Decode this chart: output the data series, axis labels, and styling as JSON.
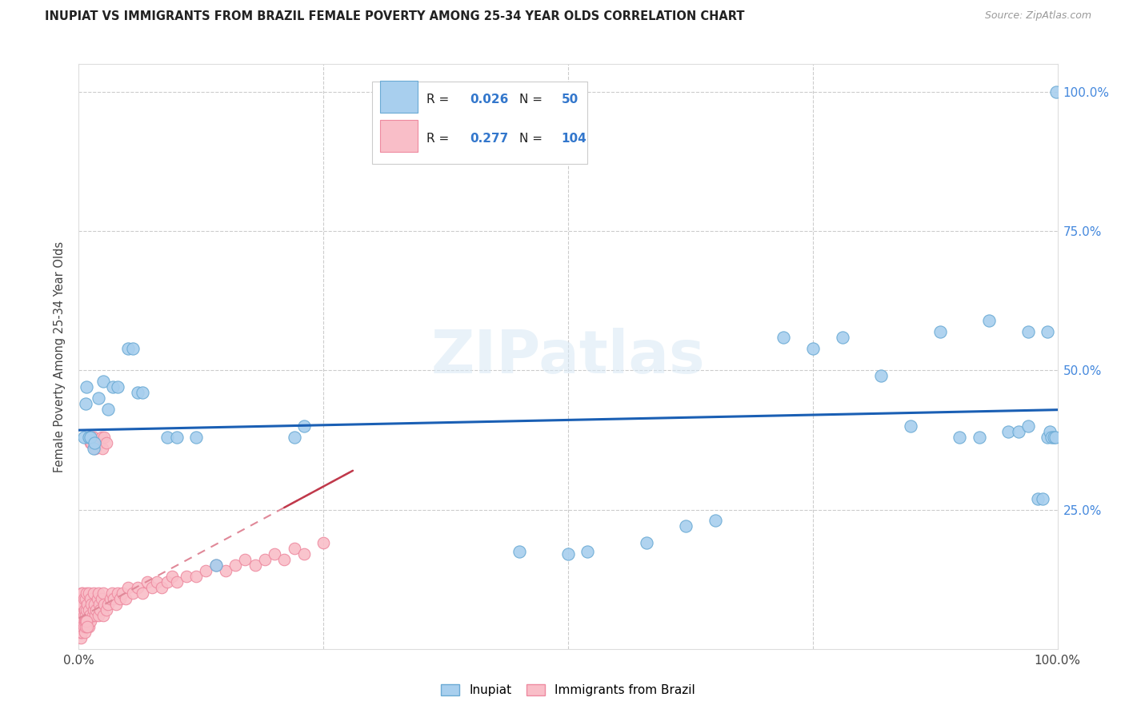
{
  "title": "INUPIAT VS IMMIGRANTS FROM BRAZIL FEMALE POVERTY AMONG 25-34 YEAR OLDS CORRELATION CHART",
  "source": "Source: ZipAtlas.com",
  "ylabel": "Female Poverty Among 25-34 Year Olds",
  "inupiat_color": "#A8CFEE",
  "brazil_color": "#F9BEC8",
  "inupiat_edge": "#6AAAD4",
  "brazil_edge": "#EE8AA0",
  "trend_inupiat_color": "#1A5FB4",
  "trend_brazil_color": "#C0394B",
  "trend_brazil_dash_color": "#E08898",
  "R_inupiat": 0.026,
  "N_inupiat": 50,
  "R_brazil": 0.277,
  "N_brazil": 104,
  "legend_label_inupiat": "Inupiat",
  "legend_label_brazil": "Immigrants from Brazil",
  "watermark": "ZIPatlas",
  "inupiat_x": [
    0.005,
    0.007,
    0.008,
    0.01,
    0.012,
    0.015,
    0.016,
    0.02,
    0.025,
    0.03,
    0.035,
    0.04,
    0.05,
    0.055,
    0.06,
    0.065,
    0.09,
    0.1,
    0.12,
    0.14,
    0.22,
    0.23,
    0.45,
    0.5,
    0.52,
    0.58,
    0.62,
    0.65,
    0.72,
    0.75,
    0.78,
    0.82,
    0.85,
    0.88,
    0.9,
    0.92,
    0.93,
    0.95,
    0.96,
    0.97,
    0.97,
    0.98,
    0.985,
    0.99,
    0.99,
    0.992,
    0.994,
    0.996,
    0.998,
    0.999
  ],
  "inupiat_y": [
    0.38,
    0.44,
    0.47,
    0.38,
    0.38,
    0.36,
    0.37,
    0.45,
    0.48,
    0.43,
    0.47,
    0.47,
    0.54,
    0.54,
    0.46,
    0.46,
    0.38,
    0.38,
    0.38,
    0.15,
    0.38,
    0.4,
    0.175,
    0.17,
    0.175,
    0.19,
    0.22,
    0.23,
    0.56,
    0.54,
    0.56,
    0.49,
    0.4,
    0.57,
    0.38,
    0.38,
    0.59,
    0.39,
    0.39,
    0.4,
    0.57,
    0.27,
    0.27,
    0.38,
    0.57,
    0.39,
    0.38,
    0.38,
    0.38,
    1.0
  ],
  "brazil_x": [
    0.001,
    0.001,
    0.002,
    0.002,
    0.002,
    0.003,
    0.003,
    0.003,
    0.003,
    0.004,
    0.004,
    0.004,
    0.005,
    0.005,
    0.005,
    0.006,
    0.006,
    0.007,
    0.007,
    0.008,
    0.008,
    0.009,
    0.009,
    0.01,
    0.01,
    0.01,
    0.011,
    0.012,
    0.012,
    0.013,
    0.014,
    0.015,
    0.015,
    0.016,
    0.017,
    0.018,
    0.019,
    0.02,
    0.02,
    0.021,
    0.022,
    0.023,
    0.025,
    0.025,
    0.026,
    0.028,
    0.03,
    0.032,
    0.034,
    0.036,
    0.038,
    0.04,
    0.042,
    0.045,
    0.048,
    0.05,
    0.055,
    0.06,
    0.065,
    0.07,
    0.075,
    0.08,
    0.085,
    0.09,
    0.095,
    0.1,
    0.11,
    0.12,
    0.13,
    0.14,
    0.15,
    0.16,
    0.17,
    0.18,
    0.19,
    0.2,
    0.21,
    0.22,
    0.23,
    0.25,
    0.002,
    0.002,
    0.003,
    0.004,
    0.005,
    0.006,
    0.007,
    0.007,
    0.008,
    0.009,
    0.01,
    0.011,
    0.012,
    0.013,
    0.014,
    0.015,
    0.016,
    0.017,
    0.019,
    0.021,
    0.023,
    0.024,
    0.026,
    0.028
  ],
  "brazil_y": [
    0.04,
    0.06,
    0.05,
    0.07,
    0.09,
    0.04,
    0.06,
    0.08,
    0.1,
    0.05,
    0.08,
    0.1,
    0.04,
    0.06,
    0.09,
    0.05,
    0.07,
    0.06,
    0.09,
    0.07,
    0.1,
    0.05,
    0.08,
    0.04,
    0.07,
    0.1,
    0.06,
    0.05,
    0.09,
    0.08,
    0.06,
    0.07,
    0.1,
    0.08,
    0.06,
    0.07,
    0.09,
    0.06,
    0.1,
    0.08,
    0.07,
    0.09,
    0.06,
    0.1,
    0.08,
    0.07,
    0.08,
    0.09,
    0.1,
    0.09,
    0.08,
    0.1,
    0.09,
    0.1,
    0.09,
    0.11,
    0.1,
    0.11,
    0.1,
    0.12,
    0.11,
    0.12,
    0.11,
    0.12,
    0.13,
    0.12,
    0.13,
    0.13,
    0.14,
    0.15,
    0.14,
    0.15,
    0.16,
    0.15,
    0.16,
    0.17,
    0.16,
    0.18,
    0.17,
    0.19,
    0.02,
    0.03,
    0.03,
    0.04,
    0.04,
    0.03,
    0.04,
    0.05,
    0.05,
    0.04,
    0.38,
    0.38,
    0.37,
    0.37,
    0.38,
    0.38,
    0.37,
    0.36,
    0.37,
    0.37,
    0.38,
    0.36,
    0.38,
    0.37
  ],
  "xlim": [
    0.0,
    1.0
  ],
  "ylim": [
    0.0,
    1.05
  ],
  "grid_color": "#CCCCCC",
  "label_color_right": "#4488DD"
}
